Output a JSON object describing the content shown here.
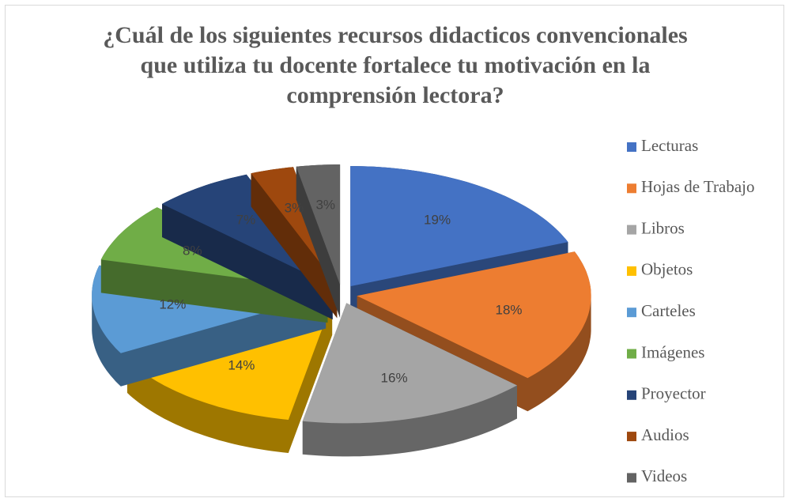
{
  "chart_data": {
    "type": "pie3d",
    "title": "¿Cuál de los siguientes recursos didacticos convencionales que utiliza tu docente fortalece tu motivación en la comprensión lectora?",
    "categories": [
      "Lecturas",
      "Hojas de Trabajo",
      "Libros",
      "Objetos",
      "Carteles",
      "Imágenes",
      "Proyector",
      "Audios",
      "Videos"
    ],
    "values": [
      19,
      18,
      16,
      14,
      12,
      8,
      7,
      3,
      3
    ],
    "value_labels": [
      "19%",
      "18%",
      "16%",
      "14%",
      "12%",
      "8%",
      "7%",
      "3%",
      "3%"
    ],
    "colors": [
      "#4472c4",
      "#ed7d31",
      "#a5a5a5",
      "#ffc000",
      "#5b9bd5",
      "#70ad47",
      "#264478",
      "#9e480e",
      "#636363"
    ],
    "legend": "right"
  }
}
